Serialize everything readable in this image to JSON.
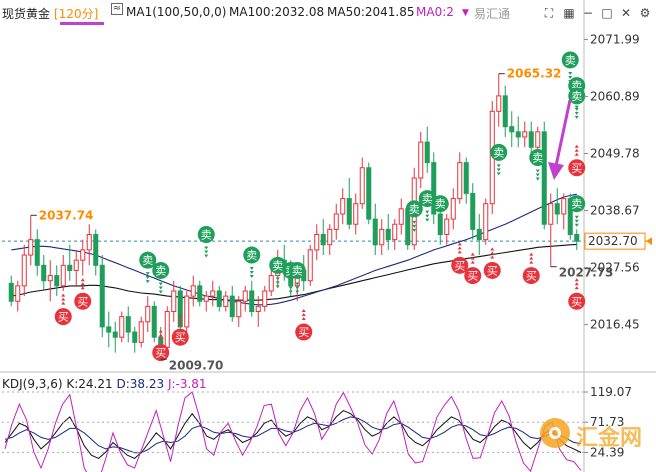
{
  "header": {
    "symbol": "现货黄金",
    "period": "[120分]",
    "ma_indicator": "MA1(100,50,0,0)",
    "ma100": "MA100:2032.08",
    "ma50": "MA50:2041.85",
    "ma0": "MA0:2",
    "brand": "易汇通"
  },
  "kdj": {
    "label": "KDJ(9,3,6)",
    "k": "K:24.21",
    "d": "D:38.23",
    "j": "J:-3.81"
  },
  "watermark": "汇金网",
  "colors": {
    "up": "#e8323c",
    "down": "#1e9e5a",
    "ma100": "#111111",
    "ma50": "#1a2a80",
    "kdj_j": "#c020c0",
    "arrow": "#c040d0",
    "ref_line": "#2a8aa8",
    "last_price": "#ff8c00"
  },
  "chart_data": [
    {
      "type": "candlestick",
      "title": "现货黄金 120分",
      "ylim": [
        2008,
        2075
      ],
      "y_ticks": [
        2071.99,
        2060.89,
        2049.78,
        2038.67,
        2027.56,
        2016.45
      ],
      "last_price": 2032.7,
      "annotations": [
        {
          "text": "2037.74",
          "value": 2037.74,
          "kind": "high"
        },
        {
          "text": "2065.32",
          "value": 2065.32,
          "kind": "high"
        },
        {
          "text": "2009.70",
          "value": 2009.7,
          "kind": "low"
        },
        {
          "text": "2027.73",
          "value": 2027.73,
          "kind": "low"
        }
      ],
      "candles": [
        [
          2024.5,
          2026.0,
          2020.0,
          2021.0
        ],
        [
          2021.0,
          2025.0,
          2019.0,
          2024.0
        ],
        [
          2024.0,
          2032.0,
          2022.0,
          2030.0
        ],
        [
          2030.0,
          2037.7,
          2028.0,
          2033.0
        ],
        [
          2033.0,
          2035.0,
          2026.0,
          2028.0
        ],
        [
          2028.0,
          2030.0,
          2023.0,
          2025.0
        ],
        [
          2025.0,
          2029.0,
          2021.0,
          2026.0
        ],
        [
          2026.0,
          2028.0,
          2022.0,
          2024.0
        ],
        [
          2024.0,
          2030.0,
          2023.0,
          2028.0
        ],
        [
          2028.0,
          2032.0,
          2025.0,
          2027.0
        ],
        [
          2027.0,
          2031.0,
          2024.0,
          2029.0
        ],
        [
          2029.0,
          2033.0,
          2026.0,
          2031.0
        ],
        [
          2031.0,
          2036.0,
          2028.0,
          2034.0
        ],
        [
          2034.0,
          2035.0,
          2026.0,
          2028.0
        ],
        [
          2028.0,
          2030.0,
          2014.0,
          2016.0
        ],
        [
          2016.0,
          2019.0,
          2012.0,
          2015.0
        ],
        [
          2015.0,
          2017.0,
          2011.0,
          2014.0
        ],
        [
          2014.0,
          2019.0,
          2013.0,
          2018.0
        ],
        [
          2018.0,
          2020.0,
          2013.0,
          2015.0
        ],
        [
          2015.0,
          2016.0,
          2011.0,
          2013.0
        ],
        [
          2013.0,
          2018.0,
          2012.0,
          2017.0
        ],
        [
          2017.0,
          2022.0,
          2015.0,
          2020.0
        ],
        [
          2020.0,
          2021.0,
          2013.0,
          2014.0
        ],
        [
          2014.0,
          2016.0,
          2009.7,
          2012.0
        ],
        [
          2012.0,
          2020.0,
          2011.0,
          2019.0
        ],
        [
          2019.0,
          2025.0,
          2017.0,
          2023.0
        ],
        [
          2023.0,
          2024.0,
          2015.0,
          2016.0
        ],
        [
          2016.0,
          2023.0,
          2015.0,
          2022.0
        ],
        [
          2022.0,
          2026.0,
          2020.0,
          2024.0
        ],
        [
          2024.0,
          2025.0,
          2020.0,
          2021.0
        ],
        [
          2021.0,
          2023.0,
          2019.0,
          2022.0
        ],
        [
          2022.0,
          2025.0,
          2020.0,
          2023.0
        ],
        [
          2023.0,
          2024.0,
          2019.0,
          2020.0
        ],
        [
          2020.0,
          2023.0,
          2019.0,
          2022.0
        ],
        [
          2022.0,
          2024.0,
          2017.0,
          2018.0
        ],
        [
          2018.0,
          2022.0,
          2016.0,
          2021.0
        ],
        [
          2021.0,
          2024.0,
          2019.0,
          2023.0
        ],
        [
          2023.0,
          2025.0,
          2018.0,
          2019.0
        ],
        [
          2019.0,
          2022.0,
          2016.0,
          2020.0
        ],
        [
          2020.0,
          2024.0,
          2019.0,
          2023.0
        ],
        [
          2023.0,
          2027.0,
          2022.0,
          2026.0
        ],
        [
          2026.0,
          2031.0,
          2024.0,
          2029.0
        ],
        [
          2029.0,
          2032.0,
          2025.0,
          2027.0
        ],
        [
          2027.0,
          2029.0,
          2022.0,
          2024.0
        ],
        [
          2024.0,
          2028.0,
          2021.0,
          2027.0
        ],
        [
          2027.0,
          2030.0,
          2023.0,
          2025.0
        ],
        [
          2025.0,
          2032.0,
          2024.0,
          2031.0
        ],
        [
          2031.0,
          2036.0,
          2029.0,
          2034.0
        ],
        [
          2034.0,
          2037.0,
          2030.0,
          2032.0
        ],
        [
          2032.0,
          2036.0,
          2030.0,
          2035.0
        ],
        [
          2035.0,
          2040.0,
          2033.0,
          2038.0
        ],
        [
          2038.0,
          2043.0,
          2036.0,
          2041.0
        ],
        [
          2041.0,
          2045.0,
          2035.0,
          2036.0
        ],
        [
          2036.0,
          2042.0,
          2034.0,
          2040.0
        ],
        [
          2040.0,
          2049.0,
          2039.0,
          2047.0
        ],
        [
          2047.0,
          2048.0,
          2036.0,
          2037.0
        ],
        [
          2037.0,
          2040.0,
          2030.0,
          2032.0
        ],
        [
          2032.0,
          2037.0,
          2030.0,
          2035.0
        ],
        [
          2035.0,
          2038.0,
          2031.0,
          2033.0
        ],
        [
          2033.0,
          2037.0,
          2031.0,
          2036.0
        ],
        [
          2036.0,
          2041.0,
          2034.0,
          2039.0
        ],
        [
          2039.0,
          2040.0,
          2031.0,
          2032.0
        ],
        [
          2032.0,
          2047.0,
          2031.0,
          2045.0
        ],
        [
          2045.0,
          2054.0,
          2043.0,
          2052.0
        ],
        [
          2052.0,
          2055.0,
          2046.0,
          2048.0
        ],
        [
          2048.0,
          2050.0,
          2036.0,
          2038.0
        ],
        [
          2038.0,
          2041.0,
          2032.0,
          2034.0
        ],
        [
          2034.0,
          2038.0,
          2032.0,
          2037.0
        ],
        [
          2037.0,
          2043.0,
          2035.0,
          2041.0
        ],
        [
          2041.0,
          2050.0,
          2040.0,
          2048.0
        ],
        [
          2048.0,
          2049.0,
          2040.0,
          2042.0
        ],
        [
          2042.0,
          2044.0,
          2033.0,
          2035.0
        ],
        [
          2035.0,
          2038.0,
          2030.0,
          2033.0
        ],
        [
          2033.0,
          2041.0,
          2032.0,
          2040.0
        ],
        [
          2040.0,
          2060.0,
          2038.0,
          2058.0
        ],
        [
          2058.0,
          2065.3,
          2055.0,
          2061.0
        ],
        [
          2061.0,
          2063.0,
          2053.0,
          2055.0
        ],
        [
          2055.0,
          2058.0,
          2051.0,
          2054.0
        ],
        [
          2054.0,
          2057.0,
          2051.0,
          2053.0
        ],
        [
          2053.0,
          2056.0,
          2051.0,
          2054.0
        ],
        [
          2054.0,
          2056.0,
          2049.0,
          2051.0
        ],
        [
          2051.0,
          2055.0,
          2050.0,
          2054.0
        ],
        [
          2054.0,
          2056.0,
          2035.0,
          2036.0
        ],
        [
          2036.0,
          2042.0,
          2027.7,
          2040.0
        ],
        [
          2040.0,
          2043.0,
          2036.0,
          2038.0
        ],
        [
          2038.0,
          2042.0,
          2035.0,
          2041.0
        ],
        [
          2041.0,
          2042.0,
          2033.0,
          2034.0
        ],
        [
          2034.0,
          2035.0,
          2031.0,
          2032.7
        ]
      ],
      "ma100": [
        2022.0,
        2022.2,
        2022.5,
        2022.8,
        2023.0,
        2023.2,
        2023.4,
        2023.6,
        2023.8,
        2024.0,
        2024.0,
        2024.0,
        2024.1,
        2024.1,
        2024.0,
        2023.8,
        2023.6,
        2023.3,
        2023.0,
        2022.8,
        2022.6,
        2022.5,
        2022.4,
        2022.2,
        2022.0,
        2021.9,
        2021.8,
        2021.7,
        2021.6,
        2021.5,
        2021.4,
        2021.3,
        2021.3,
        2021.2,
        2021.2,
        2021.2,
        2021.2,
        2021.2,
        2021.2,
        2021.3,
        2021.4,
        2021.5,
        2021.7,
        2021.9,
        2022.1,
        2022.3,
        2022.6,
        2022.9,
        2023.2,
        2023.5,
        2023.8,
        2024.1,
        2024.4,
        2024.7,
        2025.0,
        2025.3,
        2025.6,
        2025.9,
        2026.2,
        2026.5,
        2026.8,
        2027.1,
        2027.4,
        2027.7,
        2028.0,
        2028.3,
        2028.5,
        2028.7,
        2028.9,
        2029.1,
        2029.3,
        2029.5,
        2029.7,
        2029.9,
        2030.1,
        2030.3,
        2030.5,
        2030.7,
        2030.9,
        2031.1,
        2031.3,
        2031.5,
        2031.6,
        2031.7,
        2031.8,
        2031.9,
        2032.0,
        2032.08
      ],
      "ma50": [
        2031.0,
        2031.2,
        2031.4,
        2031.6,
        2031.7,
        2031.7,
        2031.6,
        2031.4,
        2031.2,
        2031.0,
        2030.8,
        2030.6,
        2030.3,
        2030.0,
        2029.5,
        2029.0,
        2028.5,
        2028.0,
        2027.5,
        2027.0,
        2026.5,
        2026.0,
        2025.5,
        2025.0,
        2024.5,
        2024.0,
        2023.6,
        2023.2,
        2022.8,
        2022.4,
        2022.0,
        2021.8,
        2021.5,
        2021.2,
        2021.0,
        2020.8,
        2020.6,
        2020.4,
        2020.3,
        2020.3,
        2020.4,
        2020.6,
        2020.9,
        2021.2,
        2021.6,
        2022.0,
        2022.4,
        2022.8,
        2023.2,
        2023.6,
        2024.0,
        2024.5,
        2025.0,
        2025.5,
        2026.0,
        2026.5,
        2027.0,
        2027.4,
        2027.8,
        2028.2,
        2028.6,
        2029.0,
        2029.5,
        2030.0,
        2030.5,
        2031.0,
        2031.4,
        2031.8,
        2032.2,
        2032.6,
        2033.0,
        2033.5,
        2034.0,
        2034.5,
        2035.0,
        2035.5,
        2036.0,
        2036.6,
        2037.2,
        2037.8,
        2038.4,
        2039.0,
        2039.6,
        2040.2,
        2040.8,
        2041.3,
        2041.6,
        2041.85
      ],
      "ref_level": 2032.7,
      "signals_sell": [
        {
          "i": 30,
          "p": 2034.0,
          "text": "卖"
        },
        {
          "i": 37,
          "p": 2030.0,
          "text": "卖"
        },
        {
          "i": 41,
          "p": 2028.0,
          "text": "卖"
        },
        {
          "i": 43,
          "p": 2027.0,
          "text": "卖"
        },
        {
          "i": 44,
          "p": 2027.0,
          "text": "卖"
        },
        {
          "i": 23,
          "p": 2027.0,
          "text": "卖"
        },
        {
          "i": 21,
          "p": 2029.0,
          "text": "卖"
        },
        {
          "i": 62,
          "p": 2039.0,
          "text": "卖"
        },
        {
          "i": 64,
          "p": 2041.0,
          "text": "卖"
        },
        {
          "i": 66,
          "p": 2040.0,
          "text": "卖"
        },
        {
          "i": 75,
          "p": 2050.0,
          "text": "卖"
        },
        {
          "i": 81,
          "p": 2049.0,
          "text": "卖"
        },
        {
          "i": 86,
          "p": 2068.0,
          "text": "卖"
        },
        {
          "i": 89,
          "p": 2063.0,
          "text": "卖"
        },
        {
          "i": 90,
          "p": 2061.0,
          "text": "卖"
        },
        {
          "i": 102,
          "p": 2040.0,
          "text": "卖"
        }
      ],
      "signals_buy": [
        {
          "i": 11,
          "p": 2021.0,
          "text": "买"
        },
        {
          "i": 8,
          "p": 2018.0,
          "text": "买"
        },
        {
          "i": 23,
          "p": 2011.0,
          "text": "买"
        },
        {
          "i": 26,
          "p": 2014.0,
          "text": "买"
        },
        {
          "i": 45,
          "p": 2015.0,
          "text": "买"
        },
        {
          "i": 69,
          "p": 2028.0,
          "text": "买"
        },
        {
          "i": 71,
          "p": 2026.0,
          "text": "买"
        },
        {
          "i": 74,
          "p": 2027.0,
          "text": "买"
        },
        {
          "i": 80,
          "p": 2026.0,
          "text": "买"
        },
        {
          "i": 93,
          "p": 2047.0,
          "text": "买"
        },
        {
          "i": 100,
          "p": 2021.0,
          "text": "买"
        }
      ]
    },
    {
      "type": "line",
      "title": "KDJ(9,3,6)",
      "ylim": [
        0,
        119.07
      ],
      "y_ticks": [
        119.07,
        71.73,
        24.39
      ],
      "series": [
        {
          "name": "K",
          "values": [
            40,
            55,
            70,
            65,
            45,
            30,
            40,
            55,
            70,
            80,
            60,
            35,
            20,
            15,
            25,
            40,
            30,
            20,
            15,
            25,
            40,
            55,
            45,
            30,
            50,
            70,
            85,
            70,
            50,
            45,
            55,
            60,
            50,
            40,
            45,
            55,
            70,
            75,
            60,
            50,
            55,
            70,
            80,
            75,
            60,
            65,
            80,
            90,
            85,
            75,
            60,
            50,
            55,
            70,
            80,
            70,
            50,
            40,
            35,
            45,
            60,
            70,
            80,
            75,
            60,
            45,
            40,
            50,
            65,
            75,
            70,
            55,
            40,
            30,
            40,
            55,
            60,
            45,
            35,
            30,
            24.21
          ]
        },
        {
          "name": "D",
          "values": [
            45,
            48,
            55,
            60,
            55,
            48,
            45,
            48,
            55,
            62,
            62,
            55,
            45,
            35,
            30,
            33,
            32,
            28,
            24,
            24,
            30,
            38,
            42,
            40,
            42,
            50,
            62,
            66,
            62,
            56,
            54,
            56,
            54,
            50,
            48,
            50,
            56,
            62,
            62,
            58,
            56,
            60,
            66,
            70,
            68,
            66,
            70,
            76,
            80,
            78,
            72,
            64,
            60,
            62,
            68,
            70,
            64,
            56,
            48,
            46,
            50,
            56,
            64,
            68,
            66,
            60,
            52,
            50,
            54,
            60,
            64,
            62,
            56,
            48,
            46,
            50,
            54,
            52,
            46,
            40,
            38.23
          ]
        },
        {
          "name": "J",
          "values": [
            30,
            70,
            100,
            75,
            25,
            0,
            30,
            70,
            100,
            115,
            60,
            0,
            -20,
            -20,
            15,
            55,
            25,
            5,
            0,
            30,
            60,
            90,
            50,
            10,
            65,
            110,
            119,
            80,
            30,
            20,
            57,
            70,
            43,
            20,
            40,
            65,
            98,
            100,
            55,
            35,
            55,
            90,
            110,
            85,
            45,
            63,
            100,
            118,
            95,
            70,
            36,
            22,
            45,
            85,
            105,
            70,
            22,
            8,
            10,
            43,
            80,
            98,
            112,
            90,
            48,
            15,
            16,
            50,
            87,
            105,
            82,
            40,
            8,
            -5,
            30,
            65,
            72,
            30,
            13,
            10,
            -3.81
          ]
        }
      ]
    }
  ]
}
